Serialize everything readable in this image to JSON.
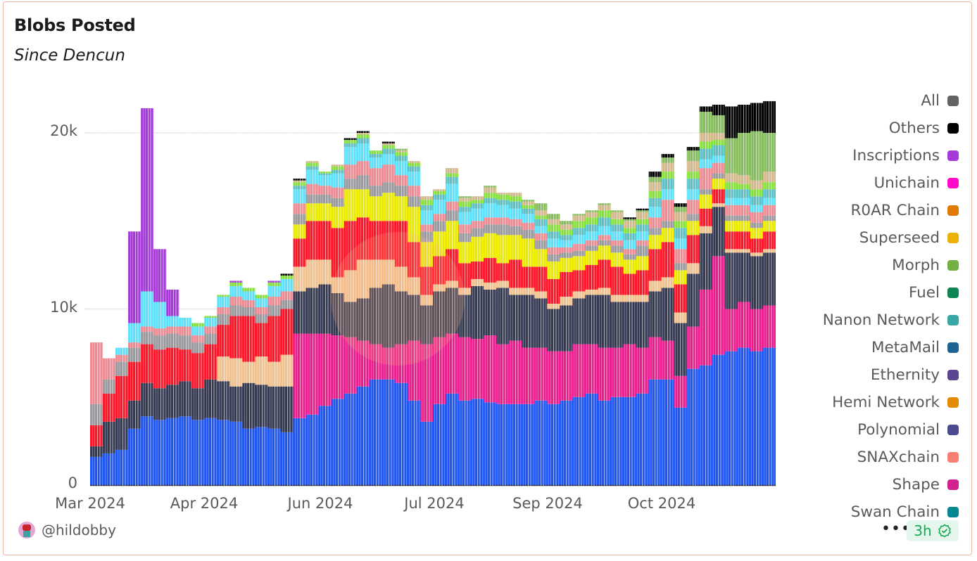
{
  "header": {
    "title": "Blobs Posted",
    "subtitle": "Since Dencun"
  },
  "footer": {
    "author": "@hildobby",
    "more_label": "•••",
    "refresh_badge": "3h",
    "badge_icon": "check-badge-icon"
  },
  "legend": [
    {
      "label": "All",
      "color": "#636366"
    },
    {
      "label": "Others",
      "color": "#000000"
    },
    {
      "label": "Inscriptions",
      "color": "#a53ad8"
    },
    {
      "label": "Unichain",
      "color": "#ff0acb"
    },
    {
      "label": "R0AR Chain",
      "color": "#e07b06"
    },
    {
      "label": "Superseed",
      "color": "#ecb006"
    },
    {
      "label": "Morph",
      "color": "#72b043"
    },
    {
      "label": "Fuel",
      "color": "#0c8653"
    },
    {
      "label": "Nanon Network",
      "color": "#37a8a6"
    },
    {
      "label": "MetaMail",
      "color": "#1e6493"
    },
    {
      "label": "Ethernity",
      "color": "#5c4493"
    },
    {
      "label": "Hemi Network",
      "color": "#e58a04"
    },
    {
      "label": "Polynomial",
      "color": "#4a4b8f"
    },
    {
      "label": "SNAXchain",
      "color": "#f87d73"
    },
    {
      "label": "Shape",
      "color": "#d12090"
    },
    {
      "label": "Swan Chain",
      "color": "#058892"
    }
  ],
  "chart_data": {
    "type": "bar",
    "stacked": true,
    "title": "Blobs Posted",
    "subtitle": "Since Dencun",
    "xlabel": "",
    "ylabel": "",
    "ylim": [
      0,
      22000
    ],
    "y_ticks": [
      "0",
      "10k",
      "20k"
    ],
    "y_tick_values": [
      0,
      10000,
      20000
    ],
    "x_tick_labels": [
      "Mar 2024",
      "Apr 2024",
      "Jun 2024",
      "Jul 2024",
      "Sep 2024",
      "Oct 2024"
    ],
    "grid": true,
    "legend_position": "right",
    "x": [
      "2024-03-13",
      "2024-03-18",
      "2024-03-23",
      "2024-03-28",
      "2024-04-02",
      "2024-04-07",
      "2024-04-12",
      "2024-04-17",
      "2024-04-22",
      "2024-04-27",
      "2024-05-02",
      "2024-05-07",
      "2024-05-12",
      "2024-05-17",
      "2024-05-22",
      "2024-05-27",
      "2024-06-01",
      "2024-06-06",
      "2024-06-11",
      "2024-06-16",
      "2024-06-21",
      "2024-06-26",
      "2024-07-01",
      "2024-07-06",
      "2024-07-11",
      "2024-07-16",
      "2024-07-21",
      "2024-07-26",
      "2024-07-31",
      "2024-08-05",
      "2024-08-10",
      "2024-08-15",
      "2024-08-20",
      "2024-08-25",
      "2024-08-30",
      "2024-09-04",
      "2024-09-09",
      "2024-09-14",
      "2024-09-19",
      "2024-09-24",
      "2024-09-29",
      "2024-10-04",
      "2024-10-09",
      "2024-10-14",
      "2024-10-19",
      "2024-10-24",
      "2024-10-29",
      "2024-11-03",
      "2024-11-08",
      "2024-11-13",
      "2024-11-18",
      "2024-11-23",
      "2024-11-28",
      "2024-12-03"
    ],
    "series": [
      {
        "color": "#1f55f0",
        "values": [
          1600,
          1800,
          2000,
          3200,
          3900,
          3700,
          3800,
          3900,
          3700,
          3800,
          3700,
          3600,
          3200,
          3300,
          3200,
          3000,
          3800,
          4000,
          4500,
          4900,
          5200,
          5600,
          6000,
          6000,
          5800,
          4800,
          3600,
          4600,
          5200,
          4800,
          4900,
          4700,
          4600,
          4600,
          4600,
          4800,
          4600,
          4800,
          5000,
          5200,
          4800,
          5000,
          5000,
          5200,
          6000,
          6000,
          4400,
          6600,
          6800,
          7400,
          7600,
          7800,
          7600,
          7800
        ]
      },
      {
        "color": "#e91e8c",
        "values": [
          0,
          0,
          0,
          0,
          0,
          0,
          0,
          0,
          0,
          0,
          0,
          0,
          0,
          0,
          0,
          0,
          4800,
          4600,
          4100,
          3600,
          3200,
          2600,
          2000,
          1800,
          2200,
          3400,
          4400,
          3800,
          3400,
          3600,
          3400,
          3800,
          3400,
          3600,
          3200,
          3000,
          3000,
          2800,
          3000,
          2800,
          3000,
          2800,
          3000,
          2600,
          2400,
          2200,
          1800,
          2400,
          4300,
          5600,
          2400,
          2600,
          2400,
          2400
        ]
      },
      {
        "color": "#353a52",
        "values": [
          600,
          1800,
          1800,
          1600,
          1900,
          1800,
          1900,
          2000,
          1800,
          2200,
          2200,
          2000,
          2600,
          2400,
          2400,
          2600,
          2400,
          2600,
          2800,
          2400,
          2000,
          2400,
          3200,
          3600,
          3000,
          2600,
          2200,
          2600,
          2600,
          2400,
          3000,
          2600,
          3200,
          2600,
          3000,
          2800,
          2400,
          2600,
          2600,
          2800,
          3000,
          2600,
          2400,
          2600,
          2600,
          3000,
          3000,
          3000,
          3200,
          2800,
          3200,
          2800,
          3000,
          3000
        ]
      },
      {
        "color": "#f0c28f",
        "values": [
          0,
          0,
          0,
          0,
          0,
          0,
          0,
          0,
          0,
          0,
          1400,
          1600,
          1200,
          1600,
          1400,
          1800,
          1400,
          1600,
          1400,
          900,
          1800,
          2200,
          1600,
          1400,
          1400,
          1000,
          600,
          400,
          400,
          400,
          400,
          400,
          400,
          400,
          400,
          400,
          300,
          500,
          400,
          300,
          400,
          400,
          400,
          400,
          600,
          600,
          600,
          600,
          400,
          200,
          200,
          200,
          200,
          200
        ]
      },
      {
        "color": "#ff1428",
        "values": [
          1200,
          1600,
          2400,
          2200,
          2200,
          2200,
          2100,
          1800,
          2000,
          2000,
          1800,
          2400,
          2600,
          1900,
          2600,
          2600,
          1600,
          2200,
          2200,
          2800,
          2800,
          2400,
          2200,
          2200,
          2600,
          2000,
          1600,
          1600,
          1800,
          1400,
          1000,
          1400,
          1000,
          1600,
          1200,
          1400,
          1400,
          1400,
          1200,
          1400,
          1600,
          1600,
          1200,
          1400,
          1800,
          2000,
          1600,
          1600,
          1000,
          800,
          1000,
          1000,
          800,
          1000
        ]
      },
      {
        "color": "#eaea00",
        "values": [
          0,
          0,
          0,
          0,
          0,
          0,
          0,
          0,
          0,
          0,
          0,
          0,
          0,
          0,
          0,
          0,
          800,
          1000,
          1000,
          1200,
          1800,
          1600,
          1400,
          1600,
          1400,
          2000,
          1400,
          1400,
          1600,
          1200,
          1400,
          1400,
          1600,
          1400,
          1600,
          1000,
          1000,
          800,
          800,
          800,
          800,
          800,
          800,
          800,
          800,
          800,
          800,
          800,
          800,
          600,
          600,
          600,
          600,
          600
        ]
      },
      {
        "color": "#9a9a9e",
        "values": [
          1200,
          800,
          800,
          800,
          700,
          800,
          800,
          800,
          600,
          600,
          600,
          600,
          500,
          500,
          600,
          500,
          600,
          500,
          500,
          500,
          600,
          800,
          600,
          600,
          600,
          600,
          600,
          600,
          600,
          500,
          500,
          500,
          600,
          500,
          500,
          500,
          400,
          300,
          300,
          300,
          300,
          400,
          300,
          600,
          400,
          400,
          400,
          400,
          300,
          300,
          300,
          300,
          300,
          300
        ]
      },
      {
        "color": "#ee8a92",
        "values": [
          3500,
          1200,
          400,
          300,
          300,
          400,
          400,
          500,
          400,
          400,
          400,
          500,
          400,
          400,
          500,
          500,
          600,
          600,
          500,
          600,
          800,
          800,
          1000,
          1000,
          600,
          600,
          400,
          400,
          500,
          500,
          400,
          400,
          400,
          400,
          400,
          400,
          400,
          300,
          400,
          300,
          300,
          300,
          300,
          300,
          600,
          1200,
          800,
          800,
          1200,
          600,
          600,
          600,
          600,
          600
        ]
      },
      {
        "color": "#5ce0fb",
        "values": [
          0,
          0,
          400,
          1100,
          2000,
          1500,
          600,
          500,
          500,
          500,
          600,
          600,
          500,
          500,
          600,
          700,
          800,
          800,
          600,
          800,
          1000,
          1000,
          600,
          600,
          800,
          800,
          800,
          800,
          1000,
          700,
          700,
          800,
          700,
          600,
          500,
          400,
          500,
          400,
          500,
          500,
          500,
          500,
          500,
          500,
          600,
          600,
          600,
          600,
          500,
          400,
          400,
          400,
          400,
          400
        ]
      },
      {
        "color": "#5bbfc4",
        "values": [
          0,
          0,
          0,
          0,
          0,
          0,
          0,
          0,
          0,
          0,
          0,
          0,
          0,
          0,
          0,
          0,
          200,
          200,
          100,
          200,
          200,
          300,
          200,
          300,
          300,
          300,
          300,
          300,
          400,
          300,
          300,
          300,
          300,
          400,
          300,
          400,
          400,
          300,
          400,
          400,
          500,
          400,
          400,
          400,
          500,
          600,
          600,
          600,
          600,
          600,
          500,
          500,
          500,
          500
        ]
      },
      {
        "color": "#86e03a",
        "values": [
          0,
          0,
          0,
          0,
          0,
          0,
          0,
          0,
          200,
          100,
          100,
          200,
          200,
          200,
          200,
          200,
          200,
          200,
          100,
          200,
          200,
          200,
          200,
          200,
          200,
          200,
          300,
          200,
          200,
          300,
          200,
          300,
          300,
          300,
          200,
          200,
          400,
          300,
          400,
          400,
          400,
          300,
          300,
          300,
          400,
          400,
          400,
          400,
          400,
          300,
          400,
          300,
          400,
          400
        ]
      },
      {
        "color": "#d3b88c",
        "values": [
          0,
          0,
          0,
          0,
          0,
          0,
          0,
          0,
          0,
          0,
          0,
          0,
          0,
          0,
          0,
          0,
          100,
          100,
          0,
          100,
          0,
          100,
          0,
          100,
          100,
          100,
          200,
          100,
          300,
          200,
          200,
          300,
          100,
          200,
          200,
          300,
          300,
          300,
          300,
          300,
          300,
          400,
          400,
          400,
          500,
          500,
          500,
          600,
          500,
          400,
          500,
          500,
          500,
          600
        ]
      },
      {
        "name": "Morph",
        "color": "#86bb5e",
        "values": [
          0,
          0,
          0,
          0,
          0,
          0,
          0,
          0,
          0,
          0,
          0,
          0,
          0,
          0,
          0,
          0,
          0,
          0,
          0,
          0,
          0,
          0,
          0,
          0,
          100,
          0,
          0,
          0,
          0,
          100,
          0,
          100,
          0,
          0,
          100,
          400,
          300,
          200,
          100,
          100,
          100,
          100,
          100,
          100,
          300,
          300,
          300,
          600,
          1200,
          1000,
          2000,
          2400,
          2800,
          2200
        ]
      },
      {
        "name": "Inscriptions",
        "color": "#a53ad8",
        "values": [
          0,
          0,
          0,
          5200,
          10400,
          3000,
          1500,
          0,
          0,
          0,
          0,
          100,
          0,
          0,
          100,
          0,
          0,
          0,
          0,
          0,
          0,
          0,
          0,
          0,
          0,
          0,
          0,
          0,
          0,
          0,
          0,
          0,
          0,
          0,
          0,
          0,
          0,
          0,
          0,
          0,
          0,
          0,
          0,
          0,
          0,
          0,
          0,
          0,
          0,
          0,
          0,
          0,
          0,
          0
        ]
      },
      {
        "name": "Others",
        "color": "#000000",
        "values": [
          0,
          0,
          0,
          0,
          0,
          0,
          0,
          0,
          0,
          0,
          0,
          0,
          0,
          0,
          0,
          100,
          100,
          0,
          0,
          0,
          100,
          100,
          0,
          100,
          0,
          0,
          0,
          0,
          0,
          0,
          0,
          0,
          0,
          0,
          0,
          0,
          0,
          0,
          0,
          0,
          0,
          0,
          100,
          100,
          300,
          200,
          200,
          200,
          300,
          600,
          1800,
          1600,
          1600,
          1800
        ]
      }
    ]
  }
}
